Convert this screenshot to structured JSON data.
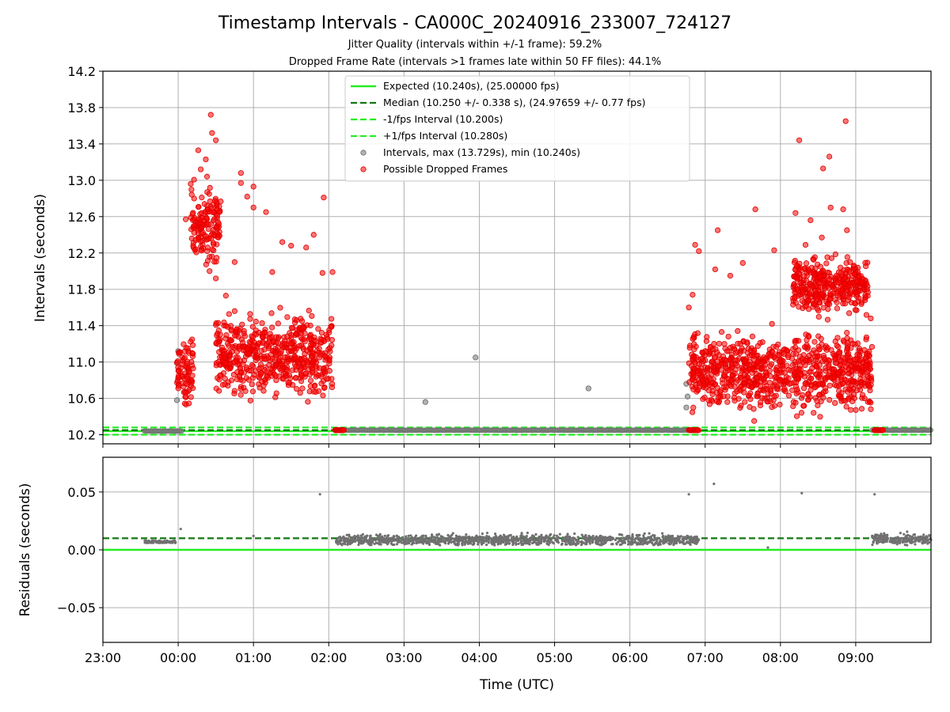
{
  "chart_data": [
    {
      "type": "scatter",
      "title": "Timestamp Intervals - CA000C_20240916_233007_724127",
      "subtitle_lines": [
        "Jitter Quality (intervals within +/-1 frame): 59.2%",
        "Dropped Frame Rate (intervals >1 frames late within 50 FF files): 44.1%"
      ],
      "ylabel": "Intervals (seconds)",
      "ylim": [
        10.1,
        14.2
      ],
      "yticks": [
        "10.2",
        "10.6",
        "11.0",
        "11.4",
        "11.8",
        "12.2",
        "12.6",
        "13.0",
        "13.4",
        "13.8",
        "14.2"
      ],
      "xlim": [
        "23:00",
        "10:00"
      ],
      "grid": true,
      "legend_position": "top-center",
      "reference_lines": [
        {
          "name": "Expected (10.240s), (25.00000 fps)",
          "y": 10.24,
          "style": "solid",
          "color": "#22ee22"
        },
        {
          "name": "Median (10.250 +/- 0.338 s), (24.97659 +/- 0.77 fps)",
          "y": 10.25,
          "style": "dashed",
          "color": "#117711"
        },
        {
          "name": "-1/fps Interval (10.200s)",
          "y": 10.2,
          "style": "dashed",
          "color": "#22ee22"
        },
        {
          "name": "+1/fps Interval (10.280s)",
          "y": 10.28,
          "style": "dashed",
          "color": "#22ee22"
        }
      ],
      "series": [
        {
          "name": "Intervals, max (13.729s), min (10.240s)",
          "color": "#808080",
          "points": [
            {
              "x": "23:59",
              "y": 10.58
            },
            {
              "x": "23:59",
              "y": 10.99
            },
            {
              "x": "00:00",
              "y": 11.12
            },
            {
              "x": "03:17",
              "y": 10.56
            },
            {
              "x": "03:57",
              "y": 11.05
            },
            {
              "x": "05:27",
              "y": 10.71
            },
            {
              "x": "06:45",
              "y": 10.5
            },
            {
              "x": "06:45",
              "y": 10.76
            },
            {
              "x": "06:46",
              "y": 10.62
            }
          ],
          "dense_runs": [
            {
              "x_start": "23:33",
              "x_end": "00:03",
              "y": 10.24
            },
            {
              "x_start": "02:05",
              "x_end": "06:48",
              "y": 10.25
            },
            {
              "x_start": "09:13",
              "x_end": "10:00",
              "y": 10.25
            }
          ]
        },
        {
          "name": "Possible Dropped Frames",
          "color": "#ff0000",
          "points": [
            {
              "x": "00:26",
              "y": 13.72
            },
            {
              "x": "08:52",
              "y": 13.65
            },
            {
              "x": "08:15",
              "y": 13.44
            },
            {
              "x": "00:27",
              "y": 13.52
            },
            {
              "x": "00:30",
              "y": 13.44
            },
            {
              "x": "00:16",
              "y": 13.33
            },
            {
              "x": "08:39",
              "y": 13.26
            },
            {
              "x": "00:22",
              "y": 13.23
            },
            {
              "x": "08:34",
              "y": 13.13
            },
            {
              "x": "00:50",
              "y": 13.08
            },
            {
              "x": "00:18",
              "y": 13.12
            },
            {
              "x": "00:23",
              "y": 13.04
            },
            {
              "x": "00:50",
              "y": 12.97
            },
            {
              "x": "00:10",
              "y": 12.96
            },
            {
              "x": "01:00",
              "y": 12.93
            },
            {
              "x": "00:55",
              "y": 12.82
            },
            {
              "x": "01:56",
              "y": 12.81
            },
            {
              "x": "00:06",
              "y": 12.57
            },
            {
              "x": "00:13",
              "y": 12.5
            },
            {
              "x": "00:16",
              "y": 12.35
            },
            {
              "x": "00:20",
              "y": 12.25
            },
            {
              "x": "00:32",
              "y": 12.37
            },
            {
              "x": "00:25",
              "y": 12.0
            },
            {
              "x": "00:30",
              "y": 11.92
            },
            {
              "x": "01:10",
              "y": 12.65
            },
            {
              "x": "01:00",
              "y": 12.7
            },
            {
              "x": "00:45",
              "y": 12.1
            },
            {
              "x": "01:23",
              "y": 12.32
            },
            {
              "x": "01:30",
              "y": 12.28
            },
            {
              "x": "01:42",
              "y": 12.26
            },
            {
              "x": "01:48",
              "y": 12.4
            },
            {
              "x": "00:38",
              "y": 11.73
            },
            {
              "x": "00:45",
              "y": 11.56
            },
            {
              "x": "01:15",
              "y": 11.99
            },
            {
              "x": "01:55",
              "y": 11.98
            },
            {
              "x": "02:03",
              "y": 11.99
            },
            {
              "x": "08:12",
              "y": 12.64
            },
            {
              "x": "08:24",
              "y": 12.56
            },
            {
              "x": "08:33",
              "y": 12.37
            },
            {
              "x": "08:40",
              "y": 12.7
            },
            {
              "x": "08:50",
              "y": 12.68
            },
            {
              "x": "08:53",
              "y": 12.45
            },
            {
              "x": "07:40",
              "y": 12.68
            },
            {
              "x": "07:10",
              "y": 12.45
            },
            {
              "x": "06:52",
              "y": 12.29
            },
            {
              "x": "06:55",
              "y": 12.22
            },
            {
              "x": "07:30",
              "y": 12.09
            },
            {
              "x": "07:55",
              "y": 12.23
            },
            {
              "x": "08:20",
              "y": 12.29
            },
            {
              "x": "07:08",
              "y": 12.02
            },
            {
              "x": "07:20",
              "y": 11.95
            },
            {
              "x": "06:47",
              "y": 11.6
            },
            {
              "x": "06:50",
              "y": 11.74
            },
            {
              "x": "09:05",
              "y": 11.88
            },
            {
              "x": "09:09",
              "y": 11.8
            },
            {
              "x": "09:12",
              "y": 11.48
            }
          ],
          "dense_clusters": [
            {
              "x_start": "23:59",
              "x_end": "00:12",
              "y_min": 10.3,
              "y_max": 11.5
            },
            {
              "x_start": "00:10",
              "x_end": "00:34",
              "y_min": 11.9,
              "y_max": 13.05
            },
            {
              "x_start": "00:30",
              "x_end": "02:03",
              "y_min": 10.45,
              "y_max": 11.7
            },
            {
              "x_start": "06:47",
              "x_end": "09:13",
              "y_min": 10.3,
              "y_max": 11.5
            },
            {
              "x_start": "08:10",
              "x_end": "09:10",
              "y_min": 11.4,
              "y_max": 12.3
            }
          ],
          "floor_runs": [
            {
              "x_start": "02:05",
              "x_end": "02:12",
              "y": 10.25
            },
            {
              "x_start": "06:47",
              "x_end": "06:55",
              "y": 10.25
            },
            {
              "x_start": "09:15",
              "x_end": "09:22",
              "y": 10.25
            }
          ]
        }
      ]
    },
    {
      "type": "scatter",
      "ylabel": "Residuals (seconds)",
      "xlabel": "Time (UTC)",
      "ylim": [
        -0.08,
        0.08
      ],
      "yticks": [
        "−0.05",
        "0.00",
        "0.05"
      ],
      "xticks": [
        "23:00",
        "00:00",
        "01:00",
        "02:00",
        "03:00",
        "04:00",
        "05:00",
        "06:00",
        "07:00",
        "08:00",
        "09:00"
      ],
      "xlim": [
        "23:00",
        "10:00"
      ],
      "grid": true,
      "reference_lines": [
        {
          "y": 0.0,
          "style": "solid",
          "color": "#22ee22"
        },
        {
          "y": 0.01,
          "style": "dashed",
          "color": "#117711"
        }
      ],
      "series": [
        {
          "color": "#808080",
          "outliers": [
            {
              "x": "00:02",
              "y": 0.018
            },
            {
              "x": "01:53",
              "y": 0.048
            },
            {
              "x": "06:47",
              "y": 0.048
            },
            {
              "x": "07:07",
              "y": 0.057
            },
            {
              "x": "08:17",
              "y": 0.049
            },
            {
              "x": "09:15",
              "y": 0.048
            },
            {
              "x": "01:00",
              "y": 0.012
            },
            {
              "x": "07:50",
              "y": 0.002
            }
          ],
          "dense_runs": [
            {
              "x_start": "23:33",
              "x_end": "23:58",
              "y_min": 0.006,
              "y_max": 0.01
            },
            {
              "x_start": "02:05",
              "x_end": "06:55",
              "y_min": 0.004,
              "y_max": 0.017
            },
            {
              "x_start": "09:13",
              "x_end": "10:00",
              "y_min": 0.004,
              "y_max": 0.018
            }
          ]
        }
      ]
    }
  ]
}
